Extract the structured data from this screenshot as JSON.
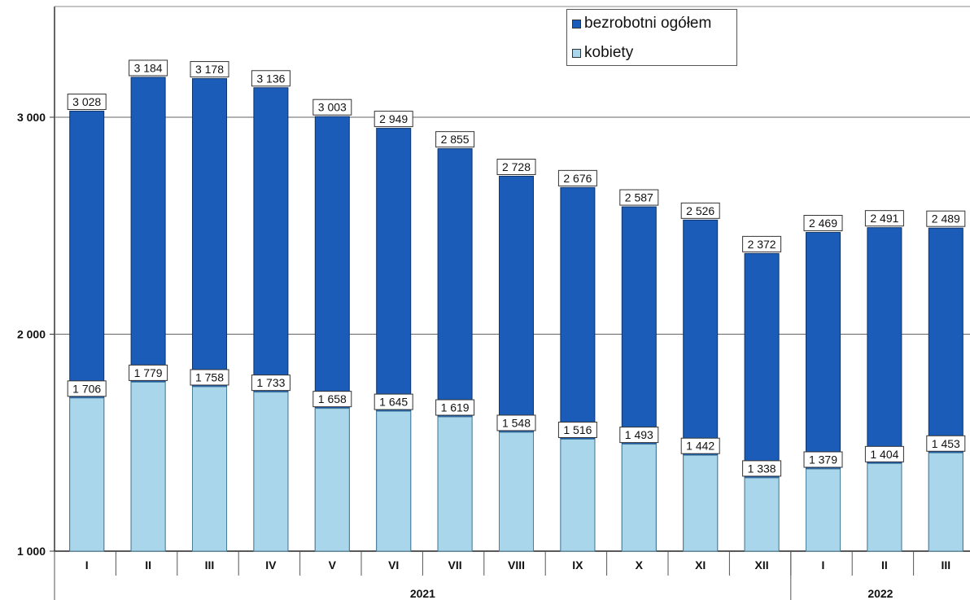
{
  "chart_data": {
    "type": "bar",
    "categories": [
      "I",
      "II",
      "III",
      "IV",
      "V",
      "VI",
      "VII",
      "VIII",
      "IX",
      "X",
      "XI",
      "XII",
      "I",
      "II",
      "III"
    ],
    "groups": [
      {
        "label": "2021",
        "count": 12
      },
      {
        "label": "2022",
        "count": 3
      }
    ],
    "series": [
      {
        "name": "bezrobotni ogółem",
        "color": "#1a5cb8",
        "values": [
          3028,
          3184,
          3178,
          3136,
          3003,
          2949,
          2855,
          2728,
          2676,
          2587,
          2526,
          2372,
          2469,
          2491,
          2489
        ],
        "labels": [
          "3 028",
          "3 184",
          "3 178",
          "3 136",
          "3 003",
          "2 949",
          "2 855",
          "2 728",
          "2 676",
          "2 587",
          "2 526",
          "2 372",
          "2 469",
          "2 491",
          "2 489"
        ]
      },
      {
        "name": "kobiety",
        "color": "#a9d6ea",
        "values": [
          1706,
          1779,
          1758,
          1733,
          1658,
          1645,
          1619,
          1548,
          1516,
          1493,
          1442,
          1338,
          1379,
          1404,
          1453
        ],
        "labels": [
          "1 706",
          "1 779",
          "1 758",
          "1 733",
          "1 658",
          "1 645",
          "1 619",
          "1 548",
          "1 516",
          "1 493",
          "1 442",
          "1 338",
          "1 379",
          "1 404",
          "1 453"
        ]
      }
    ],
    "ylim": [
      1000,
      3500
    ],
    "yticks": [
      1000,
      2000,
      3000
    ],
    "ytick_labels": [
      "1 000",
      "2 000",
      "3 000"
    ],
    "grid": true,
    "legend_position": "top-right"
  }
}
